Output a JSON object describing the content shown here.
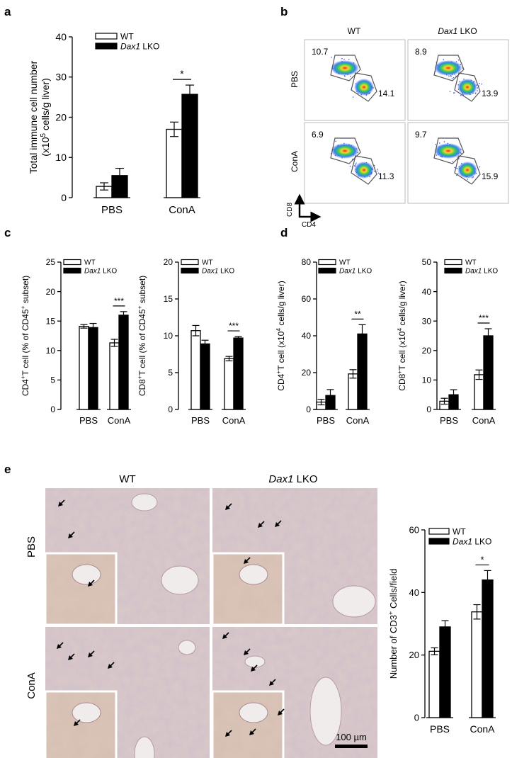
{
  "panel_letters": [
    "a",
    "b",
    "c",
    "d",
    "e"
  ],
  "legend": {
    "wt": "WT",
    "lko_gene": "Dax1",
    "lko_suffix": " LKO"
  },
  "flow": {
    "col_titles": [
      "WT",
      "Dax1 LKO"
    ],
    "row_labels": [
      "PBS",
      "ConA"
    ],
    "axis_y": "CD8",
    "axis_x": "CD4",
    "gates": [
      {
        "upper": "10.7",
        "lower": "14.1"
      },
      {
        "upper": "8.9",
        "lower": "13.9"
      },
      {
        "upper": "6.9",
        "lower": "11.3"
      },
      {
        "upper": "9.7",
        "lower": "15.9"
      }
    ]
  },
  "histology": {
    "col_titles": [
      "WT",
      "Dax1 LKO"
    ],
    "row_labels": [
      "PBS",
      "ConA"
    ],
    "scale_bar": "100 µm"
  },
  "chart_data": [
    {
      "id": "a",
      "type": "bar",
      "categories": [
        "PBS",
        "ConA"
      ],
      "series": [
        {
          "name": "WT",
          "values": [
            2.8,
            17.0
          ],
          "errors": [
            0.9,
            1.8
          ]
        },
        {
          "name": "Dax1 LKO",
          "values": [
            5.5,
            25.7
          ],
          "errors": [
            1.8,
            2.3
          ]
        }
      ],
      "ylabel_line1": "Total immune cell number",
      "ylabel_line2": "(x10^5 cells/g liver)",
      "ylim": [
        0,
        40
      ],
      "yticks": [
        0,
        10,
        20,
        30,
        40
      ],
      "significance": [
        {
          "category": "ConA",
          "label": "*"
        }
      ]
    },
    {
      "id": "c1",
      "type": "bar",
      "categories": [
        "PBS",
        "ConA"
      ],
      "series": [
        {
          "name": "WT",
          "values": [
            14.1,
            11.3
          ],
          "errors": [
            0.3,
            0.6
          ]
        },
        {
          "name": "Dax1 LKO",
          "values": [
            13.9,
            16.0
          ],
          "errors": [
            0.7,
            0.6
          ]
        }
      ],
      "ylabel": "CD4+T cell (% of CD45+ subset)",
      "ylim": [
        0,
        25
      ],
      "yticks": [
        0,
        5,
        10,
        15,
        20,
        25
      ],
      "significance": [
        {
          "category": "ConA",
          "label": "***"
        }
      ]
    },
    {
      "id": "c2",
      "type": "bar",
      "categories": [
        "PBS",
        "ConA"
      ],
      "series": [
        {
          "name": "WT",
          "values": [
            10.7,
            6.9
          ],
          "errors": [
            0.7,
            0.3
          ]
        },
        {
          "name": "Dax1 LKO",
          "values": [
            8.9,
            9.7
          ],
          "errors": [
            0.5,
            0.2
          ]
        }
      ],
      "ylabel": "CD8+T cell (% of CD45+ subset)",
      "ylim": [
        0,
        20
      ],
      "yticks": [
        0,
        5,
        10,
        15,
        20
      ],
      "significance": [
        {
          "category": "ConA",
          "label": "***"
        }
      ]
    },
    {
      "id": "d1",
      "type": "bar",
      "categories": [
        "PBS",
        "ConA"
      ],
      "series": [
        {
          "name": "WT",
          "values": [
            4.0,
            19.3
          ],
          "errors": [
            1.5,
            2.3
          ]
        },
        {
          "name": "Dax1 LKO",
          "values": [
            7.6,
            41.0
          ],
          "errors": [
            3.2,
            5.0
          ]
        }
      ],
      "ylabel": "CD4+T cell (x10^4 cells/g liver)",
      "ylim": [
        0,
        80
      ],
      "yticks": [
        0,
        20,
        40,
        60,
        80
      ],
      "significance": [
        {
          "category": "ConA",
          "label": "**"
        }
      ]
    },
    {
      "id": "d2",
      "type": "bar",
      "categories": [
        "PBS",
        "ConA"
      ],
      "series": [
        {
          "name": "WT",
          "values": [
            2.8,
            11.8
          ],
          "errors": [
            1.0,
            1.6
          ]
        },
        {
          "name": "Dax1 LKO",
          "values": [
            5.0,
            25.0
          ],
          "errors": [
            1.7,
            2.4
          ]
        }
      ],
      "ylabel": "CD8+T cell (x10^4 cells/g liver)",
      "ylim": [
        0,
        50
      ],
      "yticks": [
        0,
        10,
        20,
        30,
        40,
        50
      ],
      "significance": [
        {
          "category": "ConA",
          "label": "***"
        }
      ]
    },
    {
      "id": "e",
      "type": "bar",
      "categories": [
        "PBS",
        "ConA"
      ],
      "series": [
        {
          "name": "WT",
          "values": [
            21.2,
            33.8
          ],
          "errors": [
            1.1,
            2.3
          ]
        },
        {
          "name": "Dax1 LKO",
          "values": [
            29.0,
            44.0
          ],
          "errors": [
            2.0,
            3.0
          ]
        }
      ],
      "ylabel": "Number of CD3+ Cells/field",
      "ylim": [
        0,
        60
      ],
      "yticks": [
        0,
        20,
        40,
        60
      ],
      "significance": [
        {
          "category": "ConA",
          "label": "*"
        }
      ]
    }
  ]
}
